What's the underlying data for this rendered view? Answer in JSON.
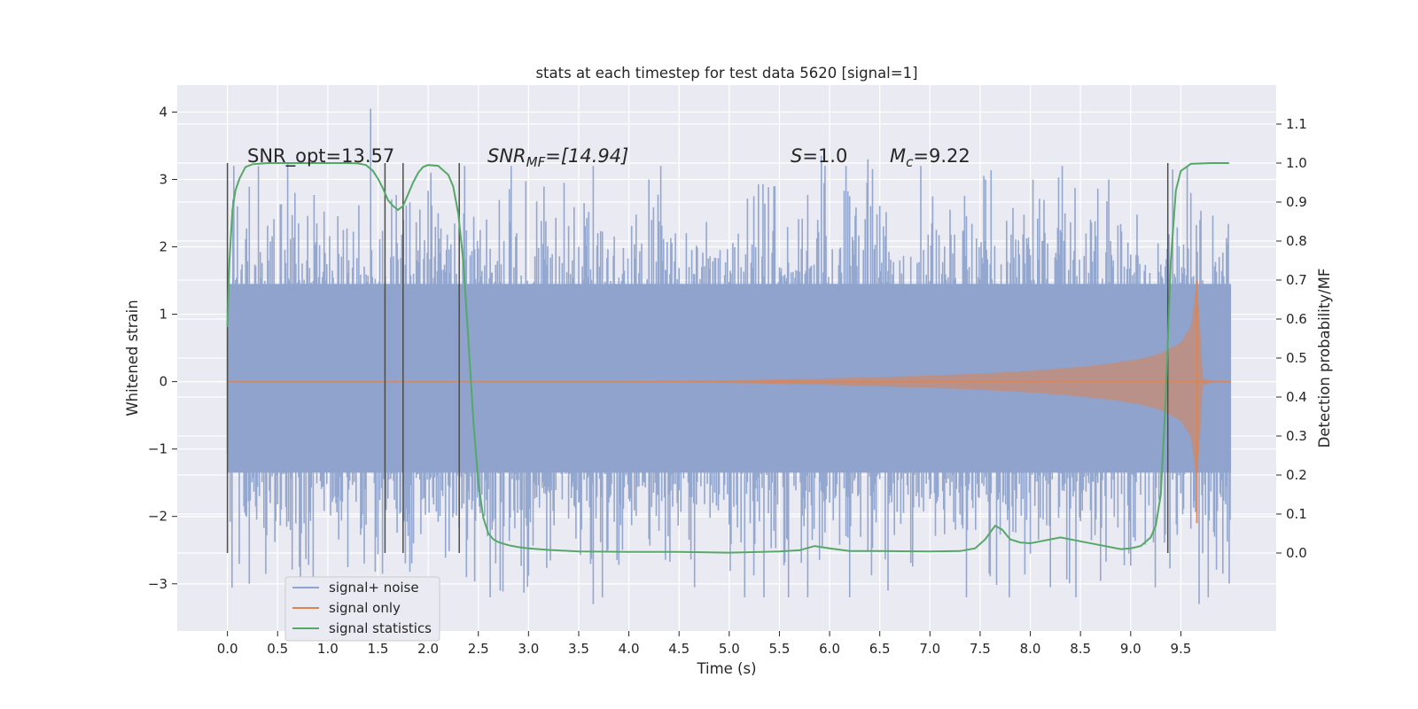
{
  "chart_data": {
    "type": "line",
    "title": "stats at each timestep for test data 5620 [signal=1]",
    "xlabel": "Time (s)",
    "ylabel": "Whitened strain",
    "ylabel_right": "Detection probability/MF",
    "xlim": [
      -0.5,
      10.45
    ],
    "ylim": [
      -3.7,
      4.4
    ],
    "ylim_right": [
      -0.2,
      1.2
    ],
    "xticks": [
      "0.0",
      "0.5",
      "1.0",
      "1.5",
      "2.0",
      "2.5",
      "3.0",
      "3.5",
      "4.0",
      "4.5",
      "5.0",
      "5.5",
      "6.0",
      "6.5",
      "7.0",
      "7.5",
      "8.0",
      "8.5",
      "9.0",
      "9.5"
    ],
    "yticks_left": [
      "−3",
      "−2",
      "−1",
      "0",
      "1",
      "2",
      "3",
      "4"
    ],
    "yticks_right": [
      "0.0",
      "0.1",
      "0.2",
      "0.3",
      "0.4",
      "0.5",
      "0.6",
      "0.7",
      "0.8",
      "0.9",
      "1.0",
      "1.1"
    ],
    "grid": true,
    "legend_position": "lower-left",
    "annotations": {
      "snr_opt": "SNR_opt=13.57",
      "snr_mf_main": "SNR",
      "snr_mf_sub": "MF",
      "snr_mf_rest": "=[14.94]",
      "s_main": "S",
      "s_rest": "=1.0",
      "mc_main": "M",
      "mc_sub": "c",
      "mc_rest": "=9.22"
    },
    "vertical_markers": [
      0.0,
      1.57,
      1.75,
      2.31,
      9.37
    ],
    "series": [
      {
        "name": "signal+ noise",
        "color": "#8fa3cc",
        "description_range": [
          -3.3,
          4.05
        ],
        "extremes": [
          [
            0.1,
            2.6
          ],
          [
            0.22,
            -3.0
          ],
          [
            0.6,
            3.25
          ],
          [
            0.72,
            -2.75
          ],
          [
            1.43,
            4.05
          ],
          [
            1.55,
            -2.85
          ],
          [
            2.03,
            3.1
          ],
          [
            2.38,
            -2.9
          ],
          [
            2.72,
            -3.1
          ],
          [
            3.35,
            2.95
          ],
          [
            3.65,
            -3.3
          ],
          [
            4.2,
            3.0
          ],
          [
            4.65,
            -3.05
          ],
          [
            5.45,
            2.9
          ],
          [
            5.92,
            3.35
          ],
          [
            6.2,
            -3.2
          ],
          [
            6.38,
            3.3
          ],
          [
            6.58,
            -3.1
          ],
          [
            7.55,
            3.0
          ],
          [
            8.2,
            -3.05
          ],
          [
            8.78,
            3.0
          ],
          [
            9.25,
            -3.05
          ],
          [
            9.42,
            3.15
          ],
          [
            9.6,
            2.8
          ],
          [
            9.68,
            -3.3
          ],
          [
            9.92,
            -2.85
          ]
        ]
      },
      {
        "name": "signal only",
        "color": "#dd8452",
        "envelope_t": [
          0,
          4.0,
          5.0,
          6.0,
          7.0,
          7.5,
          8.0,
          8.5,
          8.8,
          9.1,
          9.3,
          9.5,
          9.6,
          9.66,
          9.7,
          9.72,
          9.8,
          10.0
        ],
        "envelope_a": [
          0.0,
          0.0,
          0.02,
          0.05,
          0.09,
          0.12,
          0.16,
          0.22,
          0.27,
          0.34,
          0.42,
          0.58,
          0.82,
          1.5,
          0.6,
          0.05,
          0.02,
          0.0
        ]
      },
      {
        "name": "signal statistics",
        "color": "#55a868",
        "x": [
          0.0,
          0.02,
          0.05,
          0.08,
          0.12,
          0.18,
          0.25,
          0.4,
          0.6,
          0.8,
          1.0,
          1.2,
          1.3,
          1.38,
          1.45,
          1.5,
          1.55,
          1.6,
          1.65,
          1.7,
          1.75,
          1.8,
          1.85,
          1.9,
          1.95,
          2.0,
          2.1,
          2.2,
          2.25,
          2.3,
          2.35,
          2.4,
          2.45,
          2.5,
          2.55,
          2.6,
          2.65,
          2.7,
          2.75,
          2.8,
          2.9,
          3.0,
          3.2,
          3.5,
          4.0,
          4.5,
          5.0,
          5.5,
          5.7,
          5.85,
          6.0,
          6.2,
          6.5,
          7.0,
          7.3,
          7.45,
          7.55,
          7.65,
          7.72,
          7.8,
          7.9,
          8.0,
          8.1,
          8.3,
          8.5,
          8.7,
          8.9,
          9.0,
          9.1,
          9.2,
          9.25,
          9.3,
          9.35,
          9.4,
          9.45,
          9.5,
          9.6,
          9.8,
          9.98
        ],
        "y": [
          0.58,
          0.75,
          0.88,
          0.93,
          0.96,
          0.99,
          0.997,
          1.0,
          1.0,
          1.0,
          1.0,
          1.0,
          0.999,
          0.995,
          0.98,
          0.96,
          0.935,
          0.905,
          0.89,
          0.88,
          0.89,
          0.92,
          0.95,
          0.975,
          0.99,
          0.995,
          0.993,
          0.97,
          0.94,
          0.87,
          0.75,
          0.55,
          0.34,
          0.18,
          0.09,
          0.05,
          0.035,
          0.028,
          0.024,
          0.02,
          0.015,
          0.012,
          0.008,
          0.004,
          0.003,
          0.003,
          0.001,
          0.004,
          0.007,
          0.018,
          0.012,
          0.005,
          0.005,
          0.004,
          0.005,
          0.012,
          0.035,
          0.07,
          0.06,
          0.035,
          0.027,
          0.025,
          0.03,
          0.04,
          0.03,
          0.02,
          0.01,
          0.012,
          0.018,
          0.04,
          0.07,
          0.15,
          0.4,
          0.75,
          0.93,
          0.98,
          0.998,
          1.0,
          1.0
        ]
      }
    ]
  }
}
